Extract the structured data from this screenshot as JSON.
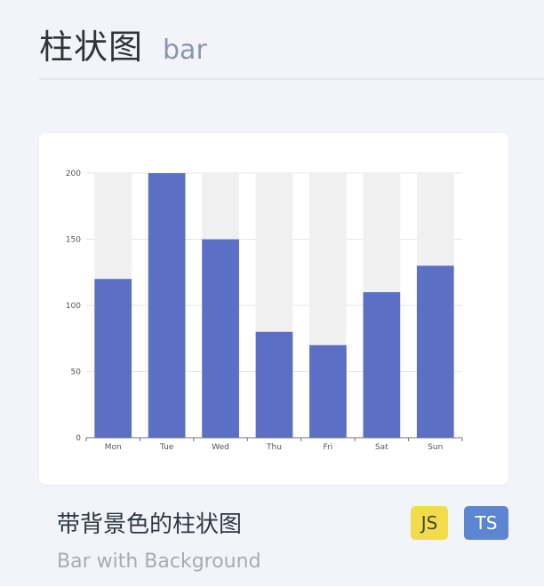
{
  "header": {
    "title": "柱状图",
    "subtitle": "bar"
  },
  "card": {
    "title": "带背景色的柱状图",
    "subtitle": "Bar with Background",
    "badges": {
      "js": "JS",
      "ts": "TS"
    }
  },
  "colors": {
    "bar": "#5b6fc4",
    "bar_background": "#f0f0f0",
    "badge_js": "#f3dc4a",
    "badge_ts": "#5c86d2"
  },
  "chart_data": {
    "type": "bar",
    "categories": [
      "Mon",
      "Tue",
      "Wed",
      "Thu",
      "Fri",
      "Sat",
      "Sun"
    ],
    "values": [
      120,
      200,
      150,
      80,
      70,
      110,
      130
    ],
    "background_values": [
      200,
      200,
      200,
      200,
      200,
      200,
      200
    ],
    "yticks": [
      0,
      50,
      100,
      150,
      200
    ],
    "ylim": [
      0,
      200
    ],
    "grid": true
  }
}
